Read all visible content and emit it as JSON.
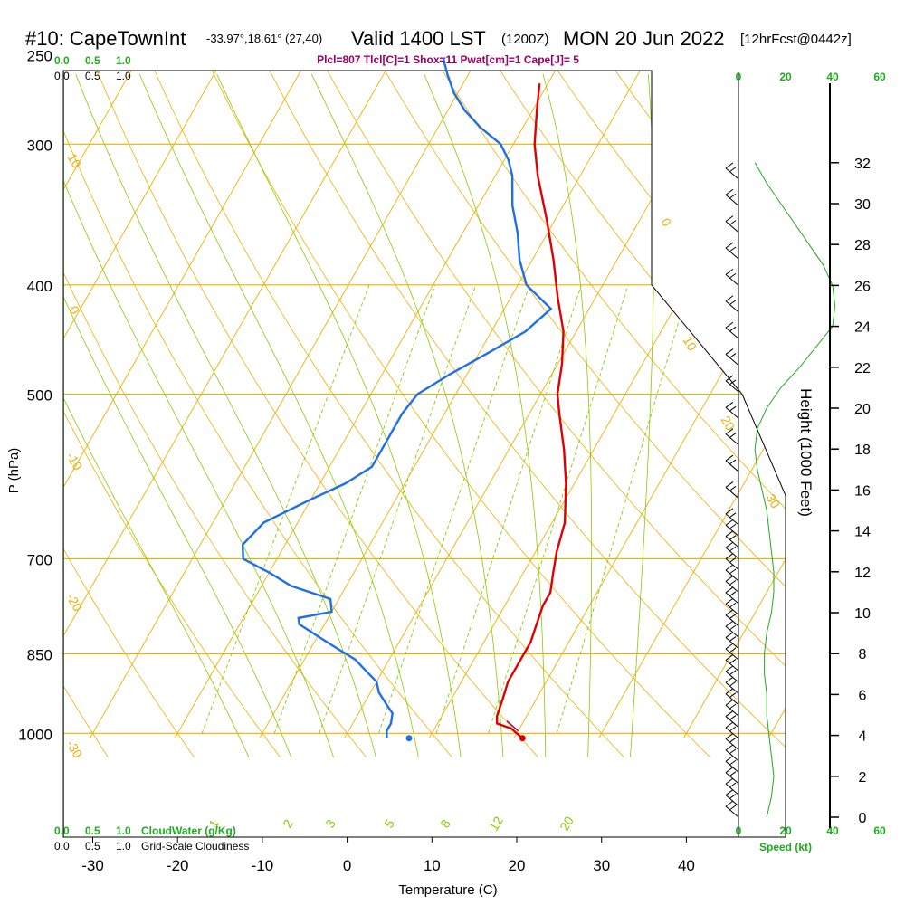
{
  "header": {
    "station": "#10: CapeTownInt",
    "coords": "-33.97°,18.61° (27,40)",
    "valid": "Valid 1400 LST",
    "utc": "(1200Z)",
    "date": "MON 20 Jun 2022",
    "forecast": "[12hrFcst@0442z]",
    "params": "Plcl=807 Tlcl[C]=1 Shox=11 Pwat[cm]=1 Cape[J]= 5"
  },
  "colors": {
    "isobar": "#f0b000",
    "mixing_ratio": "#88cc00",
    "temperature": "#e00000",
    "dewpoint": "#1e6fe8",
    "wind_speed": "#22aa22",
    "params_text": "#990066",
    "cloud_green": "#22aa22"
  },
  "top_scale": {
    "green": [
      "0.0",
      "0.5",
      "1.0"
    ],
    "black": [
      "0.0",
      "0.5",
      "1.0"
    ]
  },
  "bottom_scale": {
    "green": [
      "0.0",
      "0.5",
      "1.0"
    ],
    "green_label": "CloudWater (g/Kg)",
    "black": [
      "0.0",
      "0.5",
      "1.0"
    ],
    "black_label": "Grid-Scale Cloudiness"
  },
  "wind_panel": {
    "speed_ticks": [
      "0",
      "20",
      "40",
      "60"
    ],
    "speed_label": "Speed (kt)"
  },
  "chart_data": {
    "type": "line",
    "skew_t": true,
    "xlabel": "Temperature (C)",
    "ylabel": "P (hPa)",
    "right_axis_label": "Height (1000 Feet)",
    "x_ticks": [
      "-30",
      "-20",
      "-10",
      "0",
      "10",
      "20",
      "30",
      "40"
    ],
    "y_ticks": [
      "250",
      "300",
      "400",
      "500",
      "700",
      "850",
      "1000"
    ],
    "height_ticks": [
      "0",
      "2",
      "4",
      "6",
      "8",
      "10",
      "12",
      "14",
      "16",
      "18",
      "20",
      "22",
      "24",
      "26",
      "28",
      "30",
      "32"
    ],
    "isotherm_labels": [
      "10",
      "0",
      "-10",
      "-20",
      "-30",
      "0",
      "10",
      "20",
      "30"
    ],
    "mixing_ratio_labels": [
      "1",
      "2",
      "3",
      "5",
      "8",
      "12",
      "20"
    ],
    "series": [
      {
        "p": [
          1010,
          990,
          980,
          965,
          930,
          900,
          860,
          830,
          800,
          770,
          750,
          720,
          690,
          650,
          600,
          560,
          520,
          500,
          470,
          440,
          410,
          380,
          350,
          320,
          300,
          280,
          265
        ],
        "t": [
          21,
          19,
          17,
          16.5,
          16,
          15.5,
          15.5,
          15.5,
          15,
          14.5,
          14.5,
          13.5,
          12.5,
          11.5,
          9,
          6.5,
          3.5,
          2,
          0.5,
          -1.5,
          -4.5,
          -7.5,
          -11,
          -15,
          -17.5,
          -19.5,
          -21
        ]
      },
      {
        "p": [
          1010,
          995,
          980,
          960,
          940,
          920,
          900,
          880,
          860,
          840,
          820,
          800,
          790,
          780,
          760,
          740,
          720,
          700,
          680,
          650,
          620,
          600,
          580,
          560,
          540,
          520,
          500,
          480,
          460,
          440,
          420,
          400,
          380,
          360,
          340,
          320,
          310,
          300,
          290,
          280,
          270,
          260,
          252
        ],
        "td": [
          5,
          4.5,
          4.5,
          4,
          2.5,
          1,
          0,
          -2,
          -4,
          -7,
          -10,
          -13,
          -13.5,
          -10,
          -11,
          -16.5,
          -20,
          -24,
          -25,
          -24,
          -20,
          -17,
          -15,
          -15,
          -15,
          -15,
          -14.5,
          -12,
          -9,
          -6,
          -4.5,
          -9,
          -11.5,
          -13.5,
          -16,
          -18,
          -19.5,
          -21.5,
          -25,
          -28,
          -30.5,
          -32.5,
          -34
        ]
      }
    ],
    "wind_speed_kt": {
      "height_kft": [
        0,
        1,
        2,
        3,
        4,
        5,
        6,
        7,
        8,
        9,
        10,
        11,
        12,
        13,
        14,
        15,
        16,
        17,
        18,
        19,
        20,
        21,
        22,
        23,
        24,
        25,
        26,
        27,
        28,
        29,
        30,
        31,
        32
      ],
      "speed": [
        12,
        14,
        15,
        14,
        13,
        12,
        12,
        11,
        11,
        12,
        14,
        15,
        15,
        14,
        13,
        12,
        10,
        8,
        7,
        8,
        12,
        18,
        26,
        33,
        40,
        41,
        40,
        36,
        30,
        24,
        18,
        12,
        7
      ]
    }
  }
}
